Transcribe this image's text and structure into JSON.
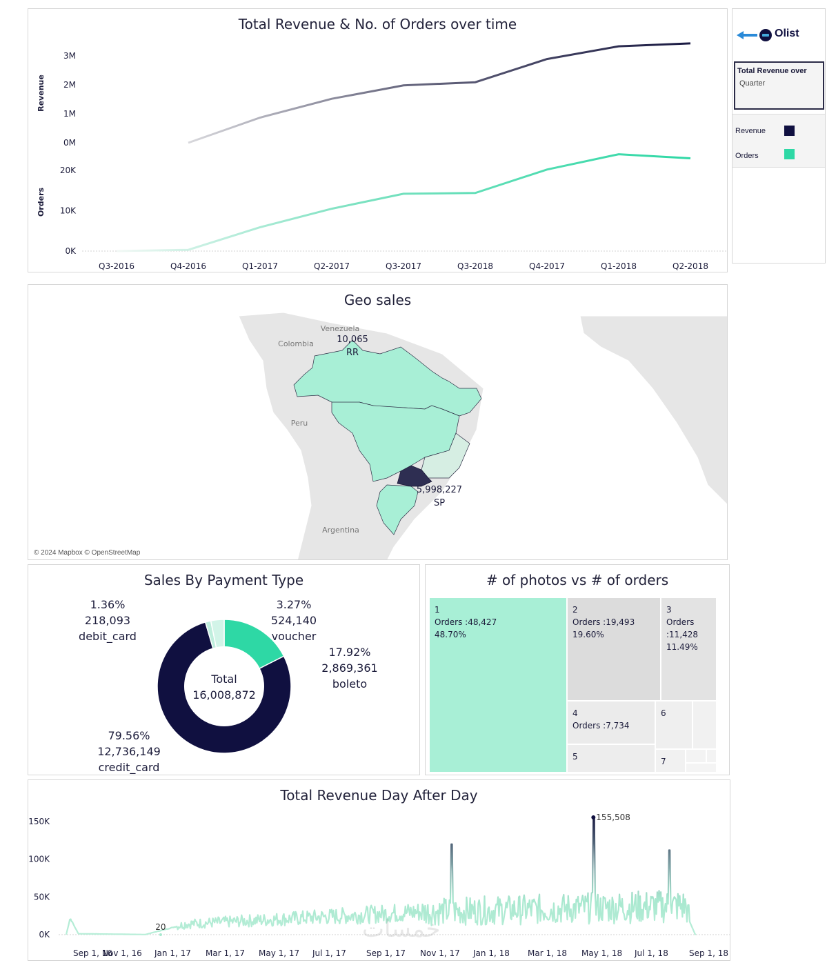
{
  "timeline": {
    "title": "Total Revenue & No. of Orders over time",
    "revenue_axis_label": "Revenue",
    "orders_axis_label": "Orders",
    "revenue_ticks": [
      "3M",
      "2M",
      "1M",
      "0M"
    ],
    "orders_ticks": [
      "20K",
      "10K",
      "0K"
    ]
  },
  "sidebar": {
    "logo_text": "Olist",
    "filter_title": "Total Revenue over",
    "filter_value": "Quarter",
    "legend": [
      {
        "label": "Revenue",
        "color": "#101040"
      },
      {
        "label": "Orders",
        "color": "#2ed8a5"
      }
    ]
  },
  "geo": {
    "title": "Geo sales",
    "country_labels": [
      "Venezuela",
      "Colombia",
      "Peru",
      "Argentina"
    ],
    "rr_value": "10,065",
    "rr_state": "RR",
    "sp_value": "5,998,227",
    "sp_state": "SP",
    "attribution": "© 2024 Mapbox © OpenStreetMap"
  },
  "payment": {
    "title": "Sales By Payment Type",
    "total_label": "Total",
    "total_value": "16,008,872",
    "labels": [
      {
        "pct": "1.36%",
        "value": "218,093",
        "name": "debit_card"
      },
      {
        "pct": "3.27%",
        "value": "524,140",
        "name": "voucher"
      },
      {
        "pct": "17.92%",
        "value": "2,869,361",
        "name": "boleto"
      },
      {
        "pct": "79.56%",
        "value": "12,736,149",
        "name": "credit_card"
      }
    ]
  },
  "photos": {
    "title": "# of photos vs # of orders",
    "tiles": [
      {
        "photos": "1",
        "orders": "Orders :48,427",
        "pct": "48.70%"
      },
      {
        "photos": "2",
        "orders": "Orders :19,493",
        "pct": "19.60%"
      },
      {
        "photos": "3",
        "orders": "Orders",
        "orders2": ":11,428",
        "pct": "11.49%"
      },
      {
        "photos": "4",
        "orders": "Orders :7,734"
      },
      {
        "photos": "5"
      },
      {
        "photos": "6"
      },
      {
        "photos": "7"
      }
    ]
  },
  "daily": {
    "title": "Total Revenue Day After Day",
    "peak_label": "155,508",
    "min_label": "20"
  },
  "watermark": "خمسات",
  "chart_data": [
    {
      "type": "line",
      "title": "Total Revenue & No. of Orders over time",
      "categories": [
        "Q3-2016",
        "Q4-2016",
        "Q1-2017",
        "Q2-2017",
        "Q3-2017",
        "Q3-2018",
        "Q4-2017",
        "Q1-2018",
        "Q2-2018"
      ],
      "series": [
        {
          "name": "Revenue",
          "axis": "Revenue",
          "ylim": [
            0,
            3500000
          ],
          "values": [
            null,
            0,
            870000,
            1520000,
            1980000,
            2090000,
            2890000,
            3330000,
            3430000
          ]
        },
        {
          "name": "Orders",
          "axis": "Orders",
          "ylim": [
            0,
            25000
          ],
          "values": [
            0,
            300,
            5900,
            10500,
            14200,
            14400,
            20200,
            24000,
            23000
          ]
        }
      ],
      "revenue_ticks": [
        0,
        1000000,
        2000000,
        3000000
      ],
      "orders_ticks": [
        0,
        10000,
        20000
      ]
    },
    {
      "type": "pie",
      "title": "Sales By Payment Type",
      "categories": [
        "voucher",
        "boleto",
        "credit_card",
        "debit_card"
      ],
      "values": [
        524140,
        2869361,
        12736149,
        218093
      ],
      "percentages": [
        3.27,
        17.92,
        79.56,
        1.36
      ],
      "total": 16008872
    },
    {
      "type": "line",
      "title": "Total Revenue Day After Day",
      "x_ticks": [
        "Sep 1, 16",
        "Nov 1, 16",
        "Jan 1, 17",
        "Mar 1, 17",
        "May 1, 17",
        "Jul 1, 17",
        "Sep 1, 17",
        "Nov 1, 17",
        "Jan 1, 18",
        "Mar 1, 18",
        "May 1, 18",
        "Jul 1, 18",
        "Sep 1, 18"
      ],
      "y_ticks": [
        "150K",
        "100K",
        "50K",
        "0K"
      ],
      "ylim": [
        0,
        160000
      ],
      "series": [
        {
          "name": "Revenue",
          "x": [
            0,
            2,
            4,
            6,
            8,
            10,
            12,
            14,
            16,
            18,
            20,
            21,
            21.5,
            22,
            22.5,
            23,
            24,
            25,
            26,
            27,
            28,
            29,
            30,
            30.5,
            31,
            31.5,
            32,
            32.5,
            33,
            34,
            35,
            35.5,
            36
          ],
          "values": [
            0,
            22000,
            4000,
            1000,
            500,
            600,
            200,
            300,
            20,
            5000,
            11000,
            13000,
            16000,
            19000,
            22000,
            24000,
            27000,
            30000,
            34000,
            40000,
            50000,
            120000,
            46000,
            63000,
            40000,
            155508,
            45000,
            55000,
            50000,
            48000,
            110000,
            68000,
            0
          ]
        }
      ]
    },
    {
      "type": "heatmap",
      "title": "# of photos vs # of orders",
      "categories": [
        "1",
        "2",
        "3",
        "4",
        "5",
        "6",
        "7"
      ],
      "values": [
        48427,
        19493,
        11428,
        7734,
        null,
        null,
        null
      ],
      "percentages": [
        48.7,
        19.6,
        11.49,
        null,
        null,
        null,
        null
      ]
    }
  ]
}
